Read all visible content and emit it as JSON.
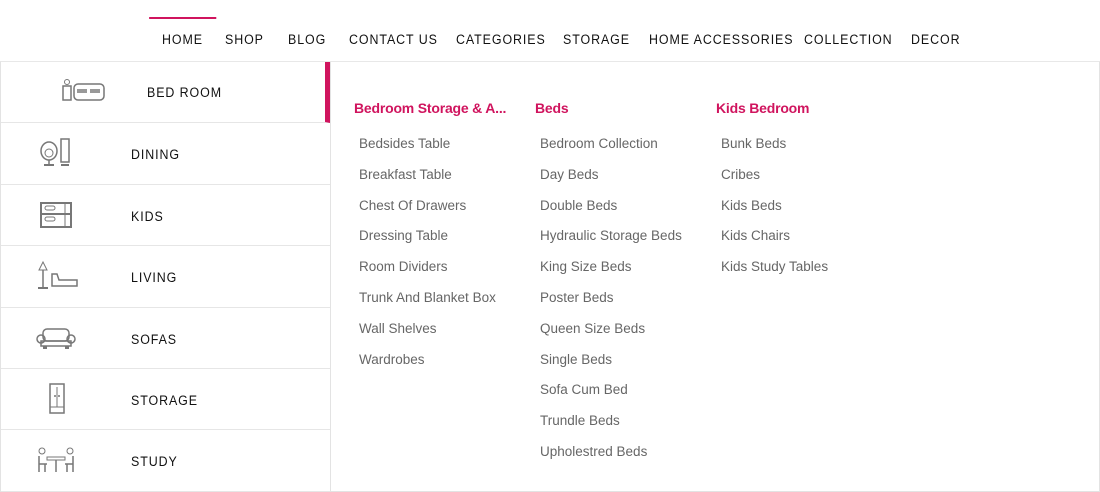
{
  "colors": {
    "accent": "#d0145e",
    "text": "#666666"
  },
  "nav": [
    "HOME",
    "SHOP",
    "BLOG",
    "CONTACT US",
    "CATEGORIES",
    "STORAGE",
    "HOME ACCESSORIES",
    "COLLECTION",
    "DECOR"
  ],
  "sidebar": [
    {
      "label": "BED ROOM",
      "icon": "bedroom-icon"
    },
    {
      "label": "DINING",
      "icon": "dining-icon"
    },
    {
      "label": "KIDS",
      "icon": "bunk-bed-icon"
    },
    {
      "label": "LIVING",
      "icon": "lamp-chaise-icon"
    },
    {
      "label": "SOFAS",
      "icon": "sofa-icon"
    },
    {
      "label": "STORAGE",
      "icon": "wardrobe-icon"
    },
    {
      "label": "STUDY",
      "icon": "study-table-icon"
    }
  ],
  "columns": [
    {
      "title": "Bedroom Storage & A...",
      "items": [
        "Bedsides Table",
        "Breakfast Table",
        "Chest Of Drawers",
        "Dressing Table",
        "Room Dividers",
        "Trunk And Blanket Box",
        "Wall Shelves",
        "Wardrobes"
      ]
    },
    {
      "title": "Beds",
      "items": [
        "Bedroom Collection",
        "Day Beds",
        "Double Beds",
        "Hydraulic Storage Beds",
        "King Size Beds",
        "Poster Beds",
        "Queen Size Beds",
        "Single Beds",
        "Sofa Cum Bed",
        "Trundle Beds",
        "Upholestred Beds"
      ]
    },
    {
      "title": "Kids Bedroom",
      "items": [
        "Bunk Beds",
        "Cribes",
        "Kids Beds",
        "Kids Chairs",
        "Kids Study Tables"
      ]
    }
  ]
}
